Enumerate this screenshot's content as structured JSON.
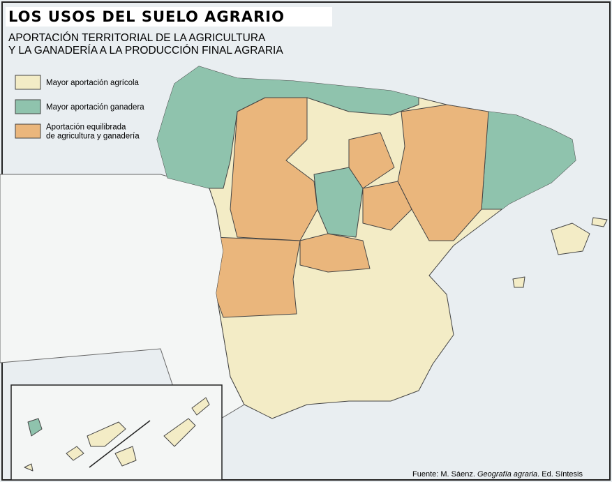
{
  "title": "LOS USOS DEL SUELO AGRARIO",
  "subtitle": [
    "APORTACIÓN TERRITORIAL DE LA AGRICULTURA",
    "Y LA GANADERÍA A LA PRODUCCIÓN FINAL AGRARIA"
  ],
  "legend": [
    {
      "label": [
        "Mayor aportación agrícola"
      ],
      "color": "#f3ecc6"
    },
    {
      "label": [
        "Mayor aportación ganadera"
      ],
      "color": "#8fc3ad"
    },
    {
      "label": [
        "Aportación equilibrada",
        "de agricultura y ganadería"
      ],
      "color": "#eab67c"
    }
  ],
  "source": {
    "prefix": "Fuente: M. Sáenz.",
    "work": "Geografía agraria",
    "suffix": ". Ed. Síntesis"
  }
}
